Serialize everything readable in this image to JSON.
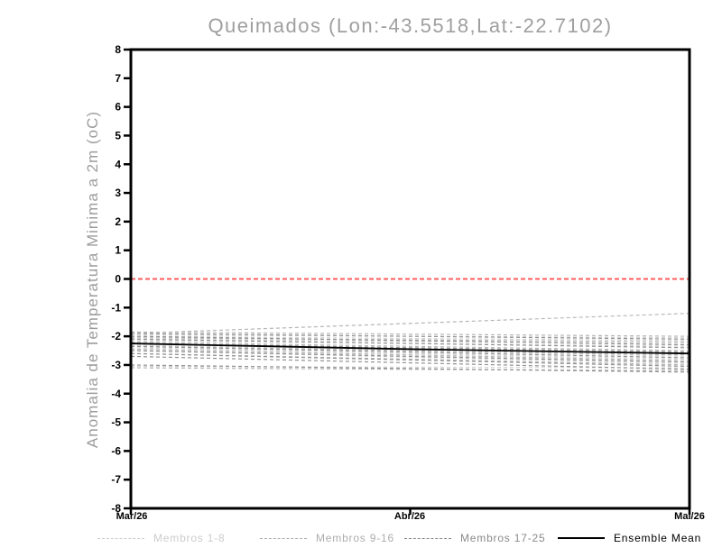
{
  "page": {
    "background_color": "#ffffff"
  },
  "chart_data": {
    "type": "line",
    "title": "Queimados (Lon:-43.5518,Lat:-22.7102)",
    "ylabel": "Anomalia de Temperatura Minima a 2m (oC)",
    "xlabel": "",
    "ylim": [
      -8,
      8
    ],
    "y_ticks": [
      8,
      7,
      6,
      5,
      4,
      3,
      2,
      1,
      0,
      -1,
      -2,
      -3,
      -4,
      -5,
      -6,
      -7,
      -8
    ],
    "x_tick_labels": [
      "Mar/26",
      "Abr/26",
      "Mai/26"
    ],
    "x_tick_positions": [
      0,
      0.5,
      1
    ],
    "grid": "off",
    "legend_position": "bottom",
    "axis_color": "#000000",
    "zero_line": {
      "y": 0,
      "color": "#ff5c5c",
      "style": "dashed"
    },
    "member_value_format": "values at [Mar/26, Mai/26]",
    "series_groups": [
      {
        "name": "Membros 1-8",
        "color": "#d4d4d4",
        "style": "dashed",
        "members_start_end": [
          [
            -1.95,
            -2.05
          ],
          [
            -2.0,
            -2.15
          ],
          [
            -2.1,
            -2.25
          ],
          [
            -2.15,
            -2.35
          ],
          [
            -2.3,
            -2.7
          ],
          [
            -2.4,
            -2.8
          ],
          [
            -2.5,
            -2.95
          ],
          [
            -3.05,
            -3.1
          ]
        ]
      },
      {
        "name": "Membros 9-16",
        "color": "#b6b6b6",
        "style": "dashed",
        "members_start_end": [
          [
            -1.9,
            -1.2
          ],
          [
            -1.85,
            -2.0
          ],
          [
            -2.05,
            -2.2
          ],
          [
            -2.2,
            -2.5
          ],
          [
            -2.35,
            -2.65
          ],
          [
            -2.45,
            -2.85
          ],
          [
            -2.6,
            -3.0
          ],
          [
            -3.1,
            -3.2
          ]
        ]
      },
      {
        "name": "Membros 17-25",
        "color": "#929292",
        "style": "dashed",
        "members_start_end": [
          [
            -1.9,
            -2.1
          ],
          [
            -2.0,
            -2.3
          ],
          [
            -2.1,
            -2.4
          ],
          [
            -2.25,
            -2.55
          ],
          [
            -2.35,
            -2.75
          ],
          [
            -2.5,
            -2.9
          ],
          [
            -2.6,
            -3.05
          ],
          [
            -2.7,
            -3.15
          ],
          [
            -3.0,
            -3.25
          ]
        ]
      }
    ],
    "ensemble_mean": {
      "name": "Ensemble Mean",
      "color": "#000000",
      "style": "solid",
      "x": [
        "Mar/26",
        "Abr/26",
        "Mai/26"
      ],
      "values": [
        -2.25,
        -2.45,
        -2.6
      ]
    },
    "legend": [
      {
        "label": "Membros 1-8",
        "color": "#cccccc",
        "style": "dashed"
      },
      {
        "label": "Membros 9-16",
        "color": "#adadad",
        "style": "dashed"
      },
      {
        "label": "Membros 17-25",
        "color": "#8a8a8a",
        "style": "dashed"
      },
      {
        "label": "Ensemble Mean",
        "color": "#000000",
        "style": "solid"
      }
    ]
  }
}
